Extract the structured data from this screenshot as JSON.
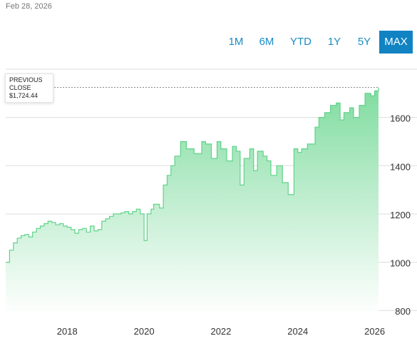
{
  "header": {
    "date": "Feb 28, 2026"
  },
  "range_selector": {
    "items": [
      {
        "label": "1M"
      },
      {
        "label": "6M"
      },
      {
        "label": "YTD"
      },
      {
        "label": "1Y"
      },
      {
        "label": "5Y"
      },
      {
        "label": "MAX"
      }
    ],
    "active": "MAX"
  },
  "tooltip": {
    "label_line1": "PREVIOUS",
    "label_line2": "CLOSE",
    "value": "$1,724.44"
  },
  "colors": {
    "accent": "#1183c3",
    "line": "#5fd388",
    "fill_top": "#7fdc9f",
    "fill_bottom": "#ffffff",
    "grid": "#dddddd",
    "reference_line": "#888888"
  },
  "chart_data": {
    "type": "area",
    "title": "",
    "xlabel": "",
    "ylabel": "",
    "reference_value": 1724.44,
    "x_ticks": [
      2018,
      2020,
      2022,
      2024,
      2026
    ],
    "y_ticks": [
      800,
      1000,
      1200,
      1400,
      1600
    ],
    "xlim": [
      2016.4,
      2026.1
    ],
    "ylim": [
      780,
      1800
    ],
    "grid": true,
    "series": [
      {
        "x": [
          2016.4,
          2016.5,
          2016.6,
          2016.7,
          2016.8,
          2016.9,
          2017.0,
          2017.1,
          2017.2,
          2017.3,
          2017.4,
          2017.5,
          2017.6,
          2017.7,
          2017.8,
          2017.9,
          2018.0,
          2018.1,
          2018.2,
          2018.3,
          2018.4,
          2018.5,
          2018.6,
          2018.7,
          2018.8,
          2018.9,
          2019.0,
          2019.1,
          2019.2,
          2019.3,
          2019.4,
          2019.5,
          2019.6,
          2019.7,
          2019.8,
          2019.9,
          2020.0,
          2020.08,
          2020.18,
          2020.25,
          2020.4,
          2020.5,
          2020.6,
          2020.7,
          2020.8,
          2020.95,
          2021.1,
          2021.3,
          2021.5,
          2021.6,
          2021.75,
          2021.9,
          2022.0,
          2022.15,
          2022.3,
          2022.4,
          2022.5,
          2022.6,
          2022.75,
          2022.85,
          2022.95,
          2023.1,
          2023.2,
          2023.3,
          2023.45,
          2023.6,
          2023.75,
          2023.9,
          2024.0,
          2024.1,
          2024.25,
          2024.45,
          2024.55,
          2024.7,
          2024.85,
          2025.0,
          2025.1,
          2025.2,
          2025.35,
          2025.45,
          2025.6,
          2025.75,
          2025.9,
          2026.0,
          2026.1
        ],
        "y": [
          1000,
          1050,
          1080,
          1100,
          1110,
          1115,
          1105,
          1125,
          1140,
          1150,
          1160,
          1170,
          1165,
          1155,
          1160,
          1150,
          1145,
          1135,
          1120,
          1135,
          1140,
          1125,
          1150,
          1130,
          1135,
          1170,
          1180,
          1190,
          1200,
          1200,
          1205,
          1210,
          1200,
          1210,
          1220,
          1200,
          1090,
          1200,
          1220,
          1240,
          1225,
          1320,
          1360,
          1400,
          1440,
          1500,
          1470,
          1450,
          1500,
          1490,
          1430,
          1500,
          1470,
          1420,
          1480,
          1460,
          1320,
          1430,
          1470,
          1380,
          1460,
          1440,
          1420,
          1360,
          1400,
          1330,
          1280,
          1470,
          1455,
          1470,
          1490,
          1560,
          1600,
          1620,
          1650,
          1660,
          1590,
          1620,
          1640,
          1600,
          1650,
          1700,
          1690,
          1710,
          1724
        ]
      }
    ]
  }
}
